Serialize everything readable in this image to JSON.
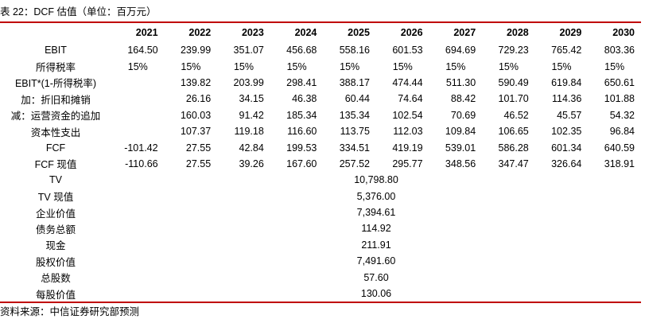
{
  "header": {
    "title": "表 22：DCF 估值（单位：百万元）"
  },
  "table": {
    "columns": [
      "2021",
      "2022",
      "2023",
      "2024",
      "2025",
      "2026",
      "2027",
      "2028",
      "2029",
      "2030"
    ],
    "rows": [
      {
        "label": "EBIT",
        "values": [
          "164.50",
          "239.99",
          "351.07",
          "456.68",
          "558.16",
          "601.53",
          "694.69",
          "729.23",
          "765.42",
          "803.36"
        ]
      },
      {
        "label": "所得税率",
        "values": [
          "15%",
          "15%",
          "15%",
          "15%",
          "15%",
          "15%",
          "15%",
          "15%",
          "15%",
          "15%"
        ]
      },
      {
        "label": "EBIT*(1-所得税率)",
        "values": [
          null,
          "139.82",
          "203.99",
          "298.41",
          "388.17",
          "474.44",
          "511.30",
          "590.49",
          "619.84",
          "650.61"
        ]
      },
      {
        "label": "加：折旧和摊销",
        "values": [
          null,
          "26.16",
          "34.15",
          "46.38",
          "60.44",
          "74.64",
          "88.42",
          "101.70",
          "114.36",
          "101.88"
        ]
      },
      {
        "label": "减：运营资金的追加",
        "values": [
          null,
          "160.03",
          "91.42",
          "185.34",
          "135.34",
          "102.54",
          "70.69",
          "46.52",
          "45.57",
          "54.32"
        ]
      },
      {
        "label": "资本性支出",
        "values": [
          null,
          "107.37",
          "119.18",
          "116.60",
          "113.75",
          "112.03",
          "109.84",
          "106.65",
          "102.35",
          "96.84"
        ]
      },
      {
        "label": "FCF",
        "values": [
          "-101.42",
          "27.55",
          "42.84",
          "199.53",
          "334.51",
          "419.19",
          "539.01",
          "586.28",
          "601.34",
          "640.59"
        ]
      },
      {
        "label": "FCF 现值",
        "values": [
          "-110.66",
          "27.55",
          "39.26",
          "167.60",
          "257.52",
          "295.77",
          "348.56",
          "347.47",
          "326.64",
          "318.91"
        ]
      }
    ],
    "summary": [
      {
        "label": "TV",
        "value": "10,798.80"
      },
      {
        "label": "TV 现值",
        "value": "5,376.00"
      },
      {
        "label": "企业价值",
        "value": "7,394.61"
      },
      {
        "label": "债务总额",
        "value": "114.92"
      },
      {
        "label": "现金",
        "value": "211.91"
      },
      {
        "label": "股权价值",
        "value": "7,491.60"
      },
      {
        "label": "总股数",
        "value": "57.60"
      },
      {
        "label": "每股价值",
        "value": "130.06"
      }
    ]
  },
  "footer": {
    "source": "资料来源：中信证券研究部预测"
  }
}
